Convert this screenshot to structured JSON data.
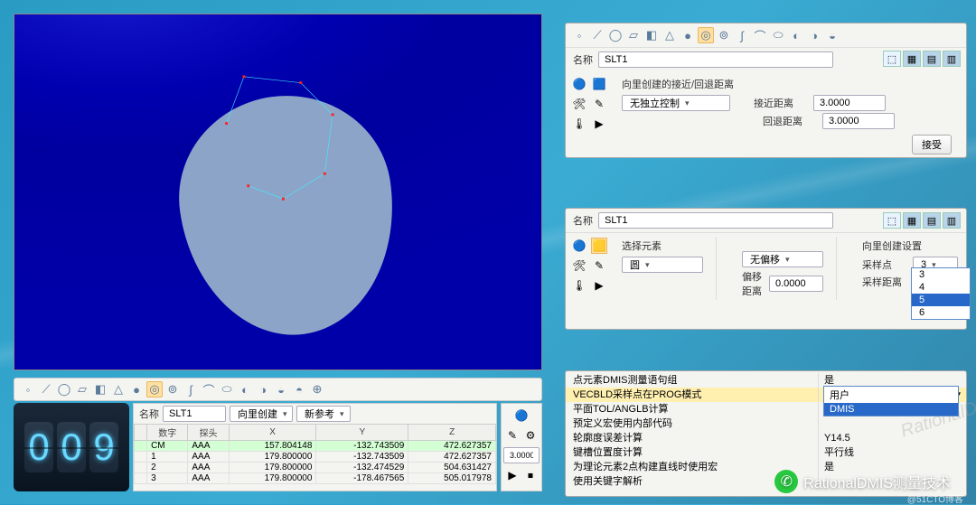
{
  "viewport": {
    "bg": "#0000a8",
    "pocket": "#8ca4c8"
  },
  "panel1": {
    "name_label": "名称",
    "name_value": "SLT1",
    "section_title": "向里创建的接近/回退距离",
    "control_combo": "无独立控制",
    "approach_label": "接近距离",
    "approach_value": "3.0000",
    "retract_label": "回退距离",
    "retract_value": "3.0000",
    "accept_btn": "接受"
  },
  "panel2": {
    "name_label": "名称",
    "name_value": "SLT1",
    "select_title": "选择元素",
    "elem_combo": "圆",
    "offset_combo": "无偏移",
    "offset_dist_label": "偏移距离",
    "offset_dist_value": "0.0000",
    "vec_title": "向里创建设置",
    "sample_pts_label": "采样点",
    "sample_pts_value": "3",
    "sample_dist_label": "采样距离",
    "dd_options": [
      "3",
      "4",
      "5",
      "6"
    ],
    "dd_hl_index": 2
  },
  "panel3": {
    "rows": [
      {
        "l": "点元素DMIS测量语句组",
        "r": "是"
      },
      {
        "l": "VECBLD采样点在PROG模式",
        "r": "DMIS"
      },
      {
        "l": "平面TOL/ANGLB计算",
        "r": ""
      },
      {
        "l": "预定义宏使用内部代码",
        "r": ""
      },
      {
        "l": "轮廓度误差计算",
        "r": "Y14.5"
      },
      {
        "l": "键槽位置度计算",
        "r": "平行线"
      },
      {
        "l": "为理论元素2点构建直线时使用宏",
        "r": "是"
      },
      {
        "l": "使用关键字解析",
        "r": ""
      }
    ],
    "dd": [
      "用户",
      "DMIS"
    ],
    "dd_hl_index": 1,
    "hl_row": 1
  },
  "bottom": {
    "counter": [
      "0",
      "0",
      "9"
    ],
    "name_label": "名称",
    "name_value": "SLT1",
    "combo1": "向里创建",
    "combo2": "新参考",
    "headers": [
      "",
      "数字",
      "探头",
      "X",
      "Y",
      "Z"
    ],
    "rows": [
      [
        "CM",
        "AAA",
        "157.804148",
        "-132.743509",
        "472.627357"
      ],
      [
        "1",
        "AAA",
        "179.800000",
        "-132.743509",
        "472.627357"
      ],
      [
        "2",
        "AAA",
        "179.800000",
        "-132.474529",
        "504.631427"
      ],
      [
        "3",
        "AAA",
        "179.800000",
        "-178.467565",
        "505.017978"
      ]
    ],
    "side_val": "3.0000"
  },
  "watermark": "RationalDMIS测量技术",
  "attribution": "@51CTO博客",
  "diag_wm": "RationalDM"
}
